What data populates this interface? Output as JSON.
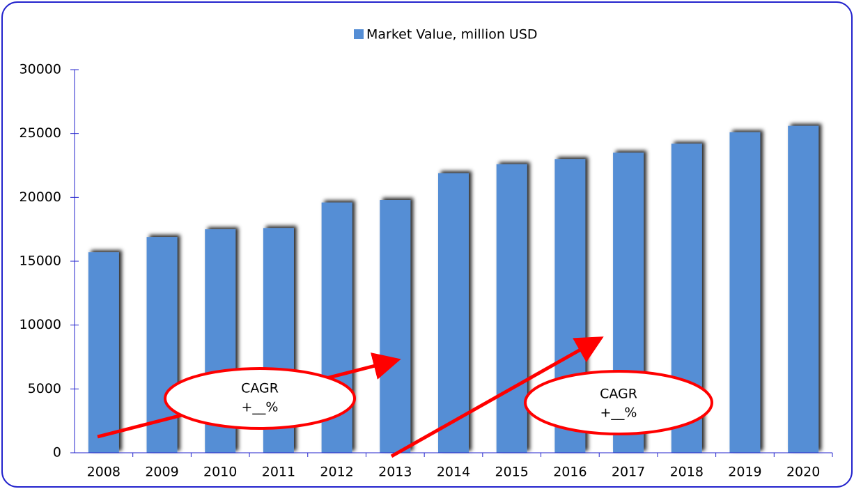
{
  "chart_data": {
    "type": "bar",
    "legend": "Market Value, million USD",
    "categories": [
      "2008",
      "2009",
      "2010",
      "2011",
      "2012",
      "2013",
      "2014",
      "2015",
      "2016",
      "2017",
      "2018",
      "2019",
      "2020"
    ],
    "values": [
      15700,
      16900,
      17500,
      17600,
      19600,
      19800,
      21900,
      22600,
      23000,
      23500,
      24200,
      25100,
      25600
    ],
    "color": "#558ed5",
    "ylim": [
      0,
      30000
    ],
    "yticks": [
      0,
      5000,
      10000,
      15000,
      20000,
      25000,
      30000
    ],
    "annotations": [
      {
        "lines": [
          "CAGR",
          "+__%"
        ]
      },
      {
        "lines": [
          "CAGR",
          "+__%"
        ]
      }
    ]
  }
}
